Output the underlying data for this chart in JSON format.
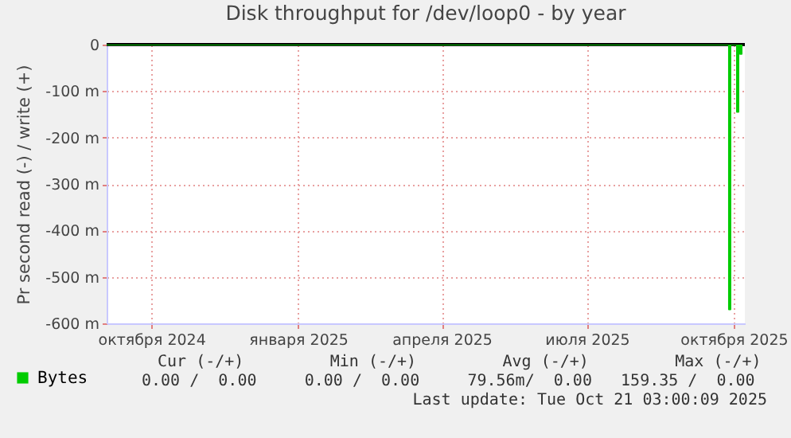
{
  "chart_data": {
    "type": "step",
    "title": "Disk throughput for /dev/loop0 - by year",
    "ylabel": "Pr second read (-) / write (+)",
    "series": [
      {
        "name": "Bytes",
        "color": "#00cc00",
        "x": [
          "2024-09-18",
          "2025-10-12",
          "2025-10-13",
          "2025-10-14",
          "2025-10-17",
          "2025-10-18",
          "2025-10-19",
          "2025-10-20",
          "2025-10-21"
        ],
        "values": [
          0,
          0,
          -570,
          0,
          0,
          -145,
          0,
          -20,
          0
        ]
      }
    ],
    "xlim": [
      "2024-09-18",
      "2025-10-23"
    ],
    "xticks": [
      {
        "value": "2024-10-16",
        "label": "октября 2024"
      },
      {
        "value": "2025-01-16",
        "label": "января 2025"
      },
      {
        "value": "2025-04-16",
        "label": "апреля 2025"
      },
      {
        "value": "2025-07-16",
        "label": "июля 2025"
      },
      {
        "value": "2025-10-16",
        "label": "октября 2025"
      }
    ],
    "ylim": [
      -600,
      0
    ],
    "yticks": [
      {
        "value": -600,
        "label": "-600 m"
      },
      {
        "value": -500,
        "label": "-500 m"
      },
      {
        "value": -400,
        "label": "-400 m"
      },
      {
        "value": -300,
        "label": "-300 m"
      },
      {
        "value": -200,
        "label": "-200 m"
      },
      {
        "value": -100,
        "label": "-100 m"
      },
      0
    ],
    "ref_lines": [
      {
        "axis": "y",
        "value": 0,
        "color": "#000000"
      }
    ],
    "grid": true,
    "legend": "bottom left",
    "annotations": [
      "Cur (-/+)         Min (-/+)         Avg (-/+)         Max (-/+)",
      "0.00 /  0.00     0.00 /  0.00     79.56m/  0.00   159.35 /  0.00",
      "Last update: Tue Oct 21 03:00:09 2025"
    ]
  }
}
